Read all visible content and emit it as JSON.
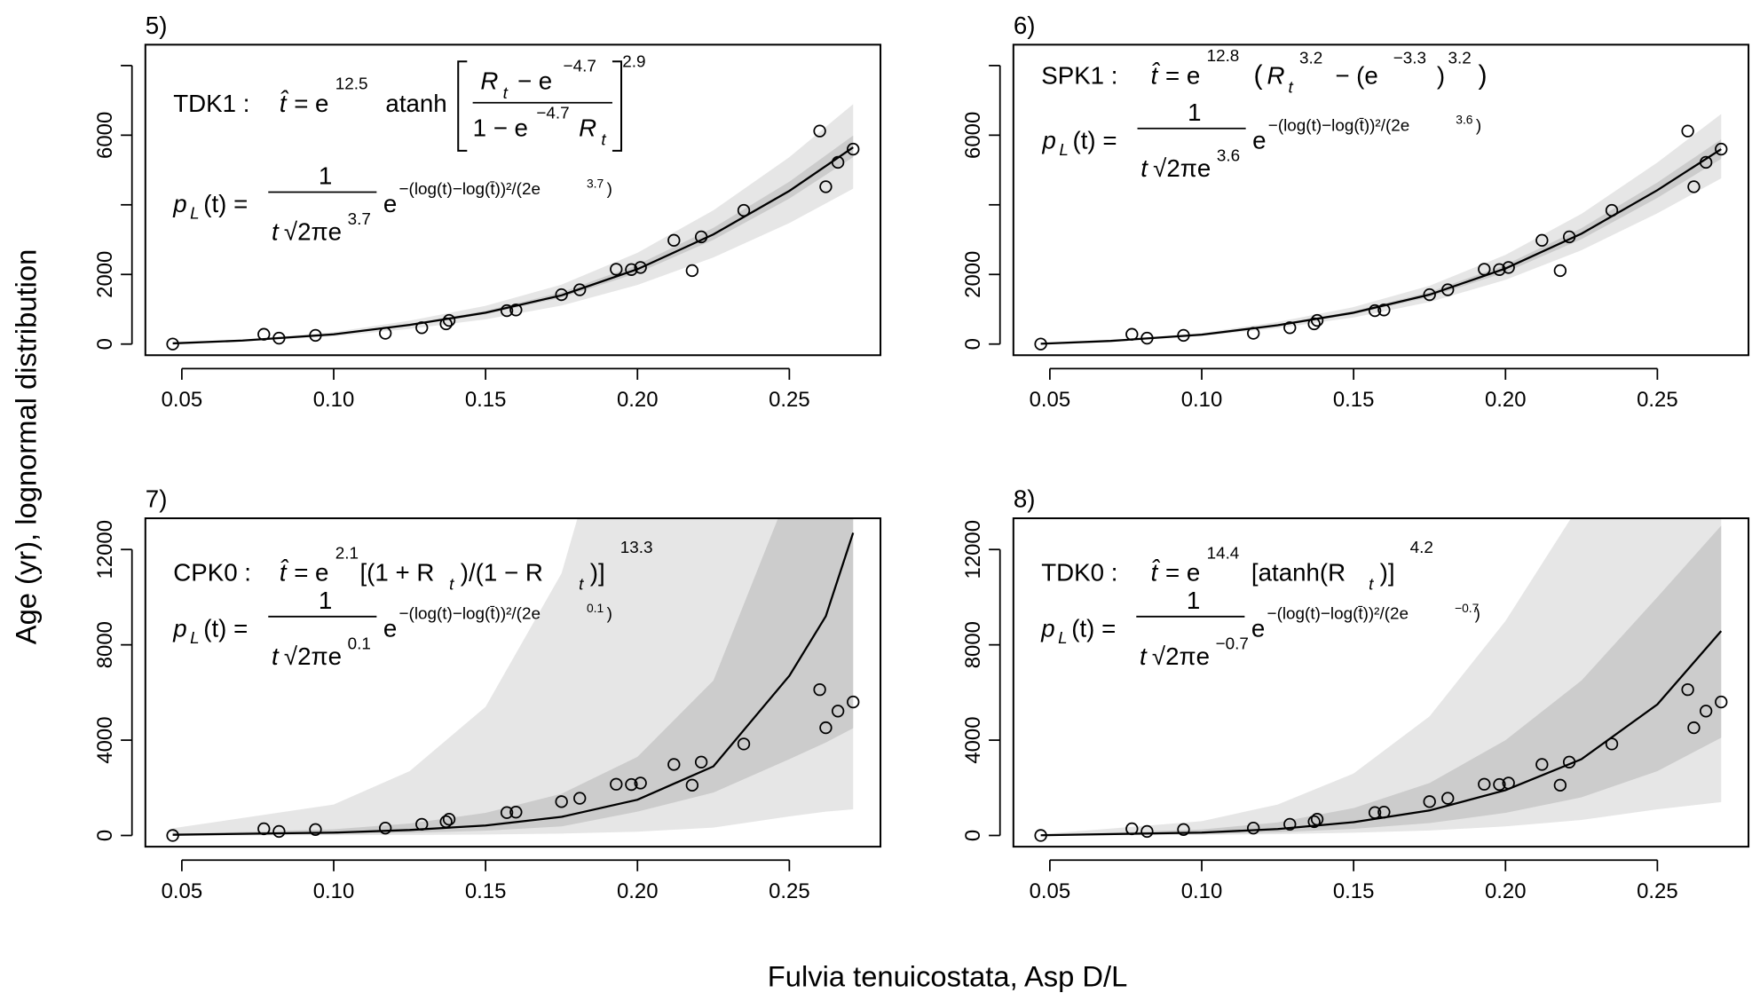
{
  "figure": {
    "xlabel": "Fulvia tenuicostata, Asp D/L",
    "ylabel": "Age (yr), lognormal distribution"
  },
  "chart_data": [
    {
      "type": "scatter",
      "label": "5)",
      "eq": [
        "TDK1 :",
        "t̂",
        "= e",
        "12.5",
        "atanh",
        "R",
        "t",
        "− e",
        "−4.7",
        "1 − e",
        "−4.7",
        "R",
        "t",
        "2.9"
      ],
      "pdf": [
        "p",
        "L",
        "(t) =",
        "1",
        "t",
        "√2πe",
        "3.7",
        "e",
        "−(log(t)−log(t̄))²/(2e",
        "3.7",
        ")"
      ],
      "x": [
        0.047,
        0.077,
        0.082,
        0.094,
        0.117,
        0.129,
        0.137,
        0.138,
        0.157,
        0.16,
        0.175,
        0.181,
        0.193,
        0.198,
        0.201,
        0.212,
        0.218,
        0.221,
        0.235,
        0.26,
        0.262,
        0.266,
        0.271
      ],
      "values": [
        0,
        280,
        170,
        250,
        310,
        470,
        580,
        680,
        960,
        980,
        1420,
        1560,
        2150,
        2140,
        2200,
        2980,
        2110,
        3080,
        3840,
        6120,
        4520,
        5220,
        5600
      ],
      "curve": {
        "color": "#000000",
        "x": [
          0.047,
          0.07,
          0.1,
          0.125,
          0.15,
          0.175,
          0.2,
          0.225,
          0.25,
          0.271
        ],
        "values": [
          20,
          100,
          280,
          550,
          900,
          1400,
          2150,
          3150,
          4400,
          5650
        ]
      },
      "bands": [
        {
          "color": "#e6e6e6",
          "lower": [
            16,
            79,
            221,
            435,
            711,
            1106,
            1699,
            2489,
            3476,
            4464
          ],
          "upper": [
            24,
            122,
            342,
            671,
            1098,
            1708,
            2623,
            3843,
            5368,
            6893
          ]
        },
        {
          "color": "#cccccc",
          "lower": [
            19,
            95,
            266,
            523,
            855,
            1330,
            2043,
            2993,
            4180,
            5368
          ],
          "upper": [
            21,
            106,
            297,
            583,
            954,
            1484,
            2279,
            3339,
            4664,
            5989
          ]
        }
      ],
      "xlim": [
        0.038,
        0.28
      ],
      "ylim": [
        -320,
        8600
      ],
      "xticks": [
        0.05,
        {
          "value": 0.1,
          "label": "0.10"
        },
        0.15,
        {
          "value": 0.2,
          "label": "0.20"
        },
        0.25
      ],
      "yticks": [
        0,
        2000,
        {
          "value": 4000,
          "label": null
        },
        6000,
        {
          "value": 8000,
          "label": null
        }
      ]
    },
    {
      "type": "scatter",
      "label": "6)",
      "eq": [
        "SPK1 :",
        "t̂",
        "= e",
        "12.8",
        "(",
        "R",
        "t",
        "3.2",
        "− (e",
        "−3.3",
        ")",
        "3.2",
        ")"
      ],
      "pdf": [
        "p",
        "L",
        "(t) =",
        "1",
        "t",
        "√2πe",
        "3.6",
        "e",
        "−(log(t)−log(t̄))²/(2e",
        "3.6",
        ")"
      ],
      "x": [
        0.047,
        0.077,
        0.082,
        0.094,
        0.117,
        0.129,
        0.137,
        0.138,
        0.157,
        0.16,
        0.175,
        0.181,
        0.193,
        0.198,
        0.201,
        0.212,
        0.218,
        0.221,
        0.235,
        0.26,
        0.262,
        0.266,
        0.271
      ],
      "values": [
        0,
        280,
        170,
        250,
        310,
        470,
        580,
        680,
        960,
        980,
        1420,
        1560,
        2150,
        2140,
        2200,
        2980,
        2110,
        3080,
        3840,
        6120,
        4520,
        5220,
        5600
      ],
      "curve": {
        "color": "#000000",
        "x": [
          0.047,
          0.07,
          0.1,
          0.125,
          0.15,
          0.175,
          0.2,
          0.225,
          0.25,
          0.271
        ],
        "values": [
          10,
          90,
          270,
          540,
          900,
          1420,
          2170,
          3170,
          4420,
          5600
        ]
      },
      "bands": [
        {
          "color": "#e6e6e6",
          "lower": [
            9,
            77,
            230,
            459,
            765,
            1207,
            1845,
            2695,
            3757,
            4760
          ],
          "upper": [
            12,
            106,
            319,
            637,
            1062,
            1676,
            2561,
            3741,
            5216,
            6608
          ]
        },
        {
          "color": "#cccccc",
          "lower": [
            10,
            86,
            257,
            513,
            855,
            1349,
            2062,
            3012,
            4199,
            5320
          ],
          "upper": [
            11,
            95,
            284,
            567,
            945,
            1491,
            2279,
            3329,
            4641,
            5880
          ]
        }
      ],
      "xlim": [
        0.038,
        0.28
      ],
      "ylim": [
        -320,
        8600
      ],
      "xticks": [
        0.05,
        {
          "value": 0.1,
          "label": "0.10"
        },
        0.15,
        {
          "value": 0.2,
          "label": "0.20"
        },
        0.25
      ],
      "yticks": [
        0,
        2000,
        {
          "value": 4000,
          "label": null
        },
        6000,
        {
          "value": 8000,
          "label": null
        }
      ]
    },
    {
      "type": "scatter",
      "label": "7)",
      "eq": [
        "CPK0 :",
        "t̂",
        "= e",
        "2.1",
        "[(1 + R",
        "t",
        ")/(1 − R",
        "t",
        ")]",
        "13.3"
      ],
      "pdf": [
        "p",
        "L",
        "(t) =",
        "1",
        "t",
        "√2πe",
        "0.1",
        "e",
        "−(log(t)−log(t̄))²/(2e",
        "0.1",
        ")"
      ],
      "x": [
        0.047,
        0.077,
        0.082,
        0.094,
        0.117,
        0.129,
        0.137,
        0.138,
        0.157,
        0.16,
        0.175,
        0.181,
        0.193,
        0.198,
        0.201,
        0.212,
        0.218,
        0.221,
        0.235,
        0.26,
        0.262,
        0.266,
        0.271
      ],
      "values": [
        0,
        280,
        170,
        250,
        310,
        470,
        580,
        680,
        960,
        980,
        1420,
        1560,
        2150,
        2140,
        2200,
        2980,
        2110,
        3080,
        3840,
        6120,
        4520,
        5220,
        5600
      ],
      "curve": {
        "color": "#000000",
        "x": [
          0.047,
          0.1,
          0.125,
          0.15,
          0.175,
          0.2,
          0.225,
          0.25,
          0.262,
          0.271
        ],
        "values": [
          30,
          120,
          230,
          420,
          780,
          1500,
          2900,
          6700,
          9200,
          12700
        ]
      },
      "bands": [
        {
          "color": "#e6e6e6",
          "lower": [
            3,
            12,
            23,
            42,
            80,
            160,
            330,
            800,
            1000,
            1100
          ],
          "upper": [
            300,
            1300,
            2700,
            5400,
            11000,
            22000,
            42000,
            95000,
            130000,
            180000
          ]
        },
        {
          "color": "#cccccc",
          "lower": [
            15,
            60,
            110,
            200,
            380,
            1000,
            1800,
            3200,
            3900,
            4500
          ],
          "upper": [
            60,
            260,
            500,
            950,
            1750,
            3300,
            6500,
            14500,
            20000,
            27000
          ]
        }
      ],
      "xlim": [
        0.038,
        0.28
      ],
      "ylim": [
        -470,
        13310
      ],
      "xticks": [
        0.05,
        {
          "value": 0.1,
          "label": "0.10"
        },
        0.15,
        {
          "value": 0.2,
          "label": "0.20"
        },
        0.25
      ],
      "yticks": [
        0,
        4000,
        8000,
        12000
      ]
    },
    {
      "type": "scatter",
      "label": "8)",
      "eq": [
        "TDK0 :",
        "t̂",
        "= e",
        "14.4",
        "[atanh(R",
        "t",
        ")]",
        "4.2"
      ],
      "pdf": [
        "p",
        "L",
        "(t) =",
        "1",
        "t",
        "√2πe",
        "−0.7",
        "e",
        "−(log(t)−log(t̄))²/(2e",
        "−0.7",
        ")"
      ],
      "x": [
        0.047,
        0.077,
        0.082,
        0.094,
        0.117,
        0.129,
        0.137,
        0.138,
        0.157,
        0.16,
        0.175,
        0.181,
        0.193,
        0.198,
        0.201,
        0.212,
        0.218,
        0.221,
        0.235,
        0.26,
        0.262,
        0.266,
        0.271
      ],
      "values": [
        0,
        280,
        170,
        250,
        310,
        470,
        580,
        680,
        960,
        980,
        1420,
        1560,
        2150,
        2140,
        2200,
        2980,
        2110,
        3080,
        3840,
        6120,
        4520,
        5220,
        5600
      ],
      "curve": {
        "color": "#000000",
        "x": [
          0.047,
          0.1,
          0.125,
          0.15,
          0.175,
          0.2,
          0.225,
          0.25,
          0.271
        ],
        "values": [
          10,
          120,
          270,
          560,
          1050,
          1900,
          3200,
          5500,
          8580
        ]
      },
      "bands": [
        {
          "color": "#e6e6e6",
          "lower": [
            2,
            25,
            55,
            115,
            210,
            380,
            650,
            1100,
            1400
          ],
          "upper": [
            50,
            600,
            1300,
            2600,
            5000,
            9000,
            14000,
            22000,
            33000
          ]
        },
        {
          "color": "#cccccc",
          "lower": [
            5,
            60,
            130,
            280,
            520,
            950,
            1600,
            2700,
            4100
          ],
          "upper": [
            20,
            250,
            550,
            1150,
            2200,
            4000,
            6500,
            10000,
            13000
          ]
        }
      ],
      "xlim": [
        0.038,
        0.28
      ],
      "ylim": [
        -470,
        13310
      ],
      "xticks": [
        0.05,
        {
          "value": 0.1,
          "label": "0.10"
        },
        0.15,
        {
          "value": 0.2,
          "label": "0.20"
        },
        0.25
      ],
      "yticks": [
        0,
        4000,
        8000,
        12000
      ]
    }
  ]
}
